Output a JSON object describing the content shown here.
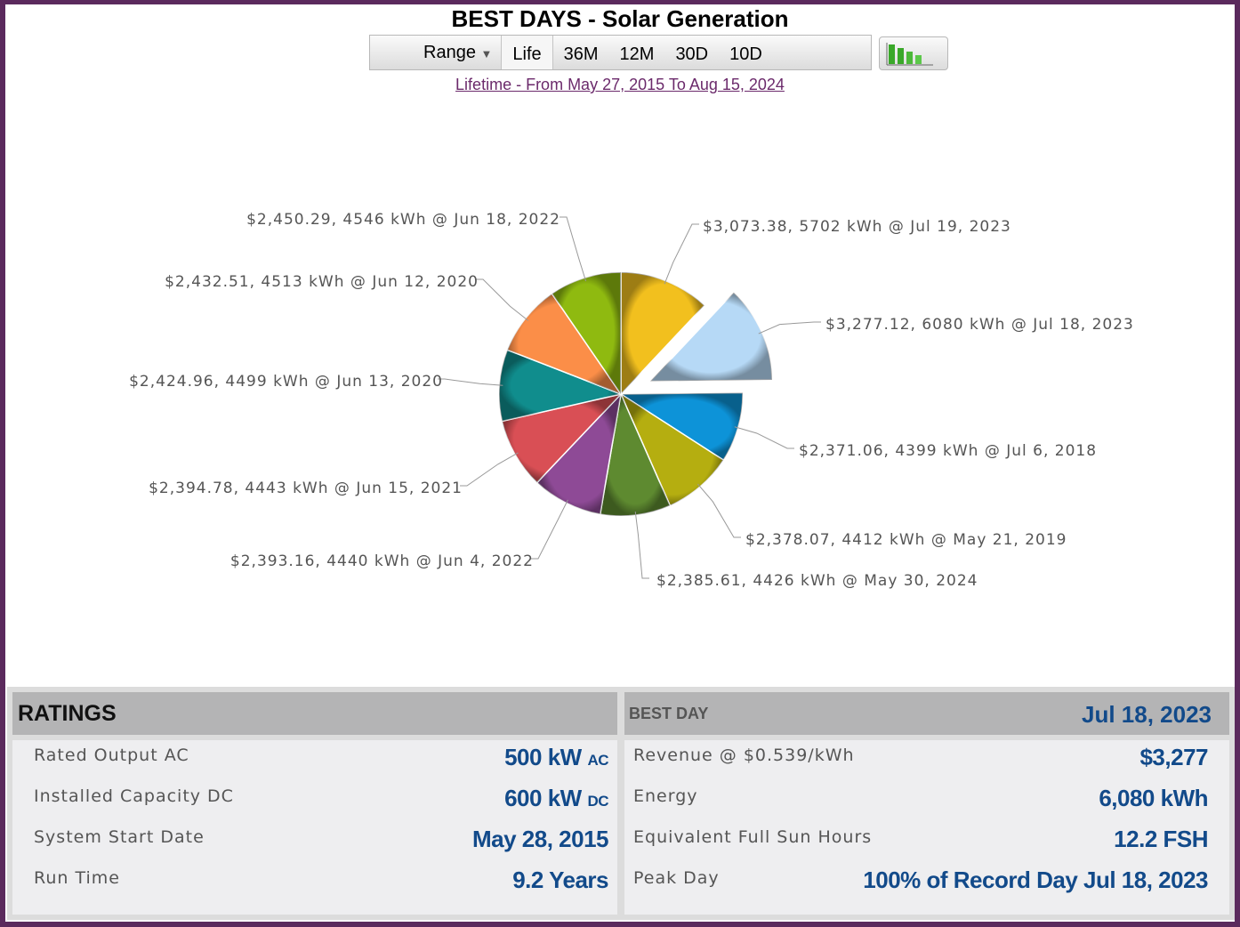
{
  "header": {
    "title": "BEST DAYS - Solar Generation",
    "range_label": "Range",
    "range_buttons": [
      "Life",
      "36M",
      "12M",
      "30D",
      "10D"
    ],
    "active_range": "Life",
    "subtitle": "Lifetime - From May 27, 2015 To Aug 15, 2024",
    "chart_toggle_icon": "bar-chart-icon"
  },
  "chart_data": {
    "type": "pie",
    "start_angle": "12 o'clock, clockwise",
    "exploded": "Jul 18, 2023",
    "slices": [
      {
        "label": "$3,073.38, 5702 kWh @ Jul 19, 2023",
        "kwh": 5702,
        "revenue": 3073.38,
        "date": "Jul 19, 2023",
        "color": "#f2c01e"
      },
      {
        "label": "$3,277.12, 6080 kWh @ Jul 18, 2023",
        "kwh": 6080,
        "revenue": 3277.12,
        "date": "Jul 18, 2023",
        "color": "#b6d9f6"
      },
      {
        "label": "$2,371.06, 4399 kWh @ Jul 6, 2018",
        "kwh": 4399,
        "revenue": 2371.06,
        "date": "Jul 6, 2018",
        "color": "#0d93d8"
      },
      {
        "label": "$2,378.07, 4412 kWh @ May 21, 2019",
        "kwh": 4412,
        "revenue": 2378.07,
        "date": "May 21, 2019",
        "color": "#b5ae10"
      },
      {
        "label": "$2,385.61, 4426 kWh @ May 30, 2024",
        "kwh": 4426,
        "revenue": 2385.61,
        "date": "May 30, 2024",
        "color": "#5e8a30"
      },
      {
        "label": "$2,393.16, 4440 kWh @ Jun 4, 2022",
        "kwh": 4440,
        "revenue": 2393.16,
        "date": "Jun 4, 2022",
        "color": "#8e4a96"
      },
      {
        "label": "$2,394.78, 4443 kWh @ Jun 15, 2021",
        "kwh": 4443,
        "revenue": 2394.78,
        "date": "Jun 15, 2021",
        "color": "#d94f55"
      },
      {
        "label": "$2,424.96, 4499 kWh @ Jun 13, 2020",
        "kwh": 4499,
        "revenue": 2424.96,
        "date": "Jun 13, 2020",
        "color": "#108d8d"
      },
      {
        "label": "$2,432.51, 4513 kWh @ Jun 12, 2020",
        "kwh": 4513,
        "revenue": 2432.51,
        "date": "Jun 12, 2020",
        "color": "#fb8e48"
      },
      {
        "label": "$2,450.29, 4546 kWh @ Jun 18, 2022",
        "kwh": 4546,
        "revenue": 2450.29,
        "date": "Jun 18, 2022",
        "color": "#8fba10"
      }
    ]
  },
  "ratings": {
    "title": "RATINGS",
    "rows": [
      {
        "label": "Rated Output AC",
        "value": "500 kW",
        "unit": "AC"
      },
      {
        "label": "Installed Capacity DC",
        "value": "600 kW",
        "unit": "DC"
      },
      {
        "label": "System Start Date",
        "value": "May 28, 2015",
        "unit": ""
      },
      {
        "label": "Run Time",
        "value": "9.2 Years",
        "unit": ""
      }
    ]
  },
  "best_day": {
    "title": "BEST DAY",
    "date": "Jul 18, 2023",
    "rows": [
      {
        "label": "Revenue @ $0.539/kWh",
        "value": "$3,277"
      },
      {
        "label": "Energy",
        "value": "6,080 kWh"
      },
      {
        "label": "Equivalent Full Sun Hours",
        "value": "12.2 FSH"
      },
      {
        "label": "Peak Day",
        "value": "100% of Record Day Jul 18, 2023"
      }
    ]
  },
  "colors": {
    "frame": "#5b2a5d",
    "value_text": "#124a8a",
    "link": "#6b2a6b"
  }
}
